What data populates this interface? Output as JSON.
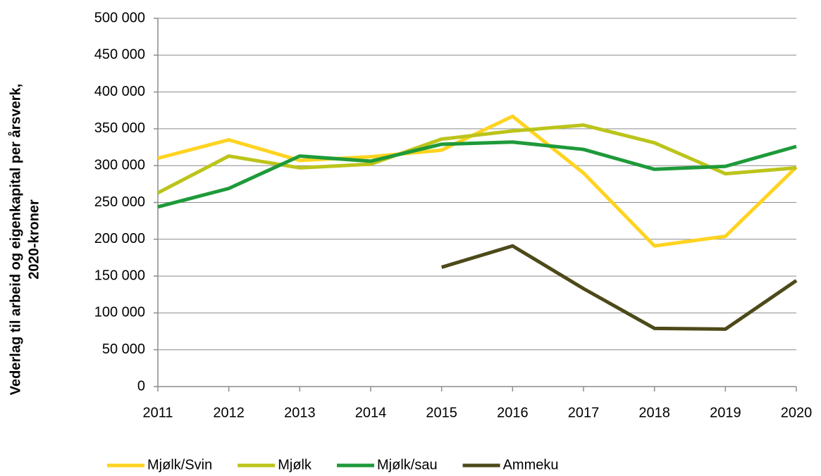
{
  "chart_data": {
    "type": "line",
    "y_label": [
      "Vederlag til arbeid og eigenkapital per årsverk,",
      "2020-kroner"
    ],
    "categories": [
      "2011",
      "2012",
      "2013",
      "2014",
      "2015",
      "2016",
      "2017",
      "2018",
      "2019",
      "2020"
    ],
    "series": [
      {
        "name": "Mjølk/Svin",
        "color": "#ffd320",
        "values": [
          310000,
          335000,
          307000,
          312000,
          321000,
          367000,
          290000,
          191000,
          204000,
          298000
        ]
      },
      {
        "name": "Mjølk",
        "color": "#bcc41a",
        "values": [
          263000,
          313000,
          297000,
          302000,
          336000,
          347000,
          355000,
          331000,
          289000,
          297000
        ]
      },
      {
        "name": "Mjølk/sau",
        "color": "#1e9a3a",
        "values": [
          244000,
          269000,
          313000,
          306000,
          329000,
          332000,
          322000,
          295000,
          299000,
          326000
        ]
      },
      {
        "name": "Ammeku",
        "color": "#4d4a1a",
        "values": [
          null,
          null,
          null,
          null,
          162000,
          191000,
          133000,
          79000,
          78000,
          144000
        ]
      }
    ],
    "ylim": [
      0,
      500000
    ],
    "yticks": [
      0,
      {
        "value": 50000,
        "label": "50 000"
      },
      {
        "value": 100000,
        "label": "100 000"
      },
      {
        "value": 150000,
        "label": "150 000"
      },
      {
        "value": 200000,
        "label": "200 000"
      },
      {
        "value": 250000,
        "label": "250 000"
      },
      {
        "value": 300000,
        "label": "300 000"
      },
      {
        "value": 350000,
        "label": "350 000"
      },
      {
        "value": 400000,
        "label": "400 000"
      },
      {
        "value": 450000,
        "label": "450 000"
      },
      {
        "value": 500000,
        "label": "500 000"
      }
    ],
    "grid": true,
    "legend": "bottom"
  }
}
